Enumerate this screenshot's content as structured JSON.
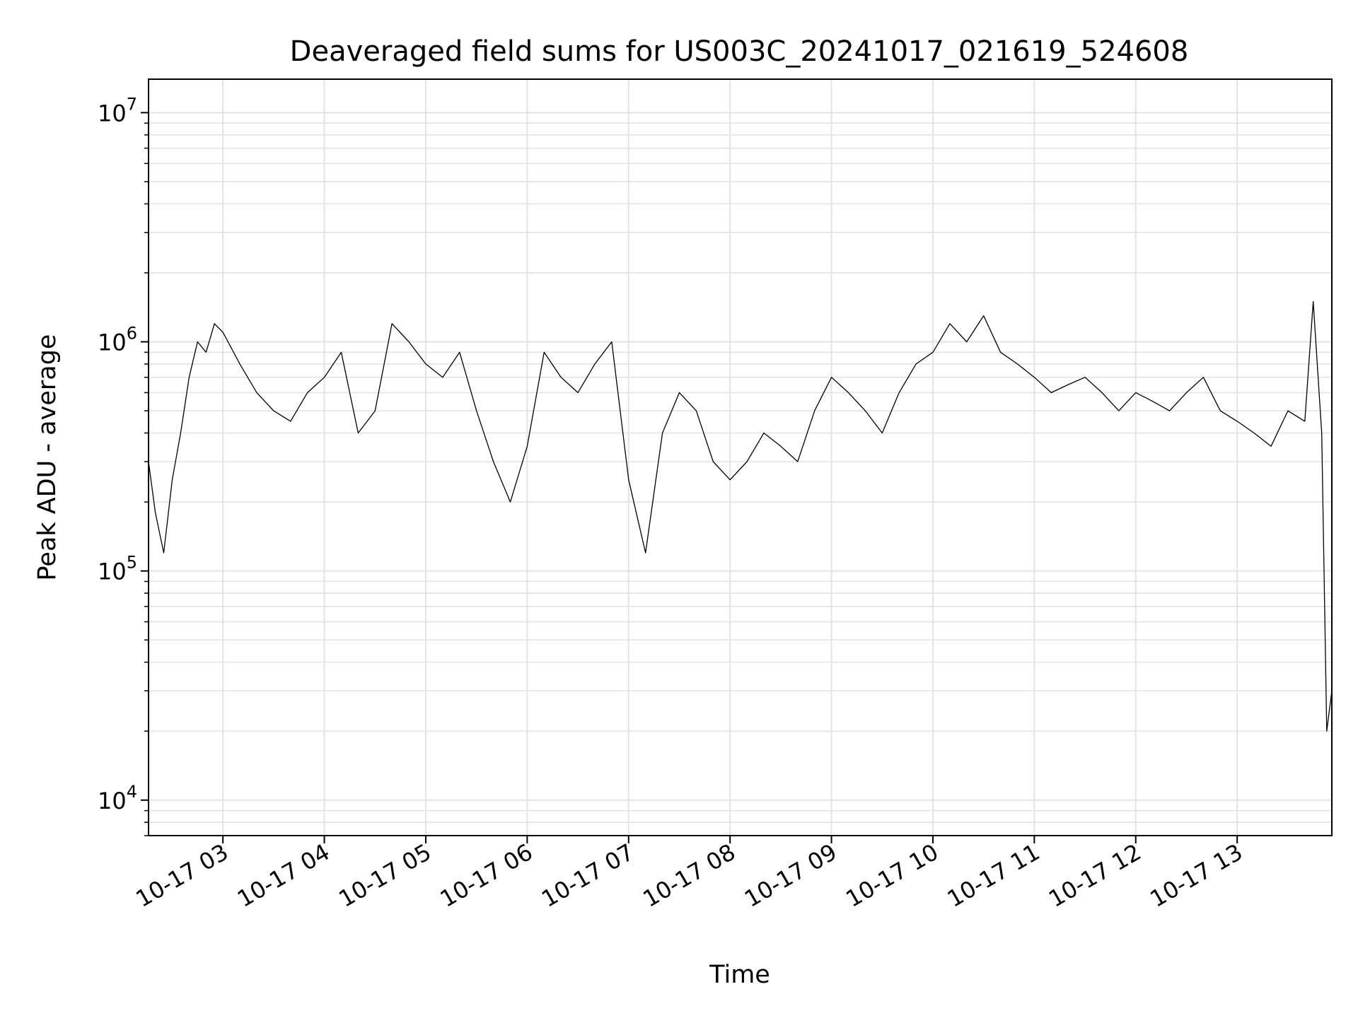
{
  "chart_data": {
    "type": "line",
    "title": "Deaveraged field sums for US003C_20241017_021619_524608",
    "xlabel": "Time",
    "ylabel": "Peak ADU - average",
    "y_scale": "log",
    "ylim": [
      7000,
      14000000
    ],
    "xlim": [
      "2024-10-17 02:16",
      "2024-10-17 13:56"
    ],
    "grid": true,
    "line_color": "#000000",
    "grid_color": "#e3e3e3",
    "x_ticks": [
      {
        "value": "2024-10-17 03:00",
        "label": "10-17 03"
      },
      {
        "value": "2024-10-17 04:00",
        "label": "10-17 04"
      },
      {
        "value": "2024-10-17 05:00",
        "label": "10-17 05"
      },
      {
        "value": "2024-10-17 06:00",
        "label": "10-17 06"
      },
      {
        "value": "2024-10-17 07:00",
        "label": "10-17 07"
      },
      {
        "value": "2024-10-17 08:00",
        "label": "10-17 08"
      },
      {
        "value": "2024-10-17 09:00",
        "label": "10-17 09"
      },
      {
        "value": "2024-10-17 10:00",
        "label": "10-17 10"
      },
      {
        "value": "2024-10-17 11:00",
        "label": "10-17 11"
      },
      {
        "value": "2024-10-17 12:00",
        "label": "10-17 12"
      },
      {
        "value": "2024-10-17 13:00",
        "label": "10-17 13"
      }
    ],
    "y_ticks": [
      {
        "value": 10000,
        "base": "10",
        "exp": "4"
      },
      {
        "value": 100000,
        "base": "10",
        "exp": "5"
      },
      {
        "value": 1000000,
        "base": "10",
        "exp": "6"
      },
      {
        "value": 10000000,
        "base": "10",
        "exp": "7"
      }
    ],
    "series": [
      {
        "x": [
          "2024-10-17 02:16",
          "2024-10-17 02:20",
          "2024-10-17 02:25",
          "2024-10-17 02:30",
          "2024-10-17 02:35",
          "2024-10-17 02:40",
          "2024-10-17 02:45",
          "2024-10-17 02:50",
          "2024-10-17 02:55",
          "2024-10-17 03:00",
          "2024-10-17 03:10",
          "2024-10-17 03:20",
          "2024-10-17 03:30",
          "2024-10-17 03:40",
          "2024-10-17 03:50",
          "2024-10-17 04:00",
          "2024-10-17 04:10",
          "2024-10-17 04:20",
          "2024-10-17 04:30",
          "2024-10-17 04:40",
          "2024-10-17 04:50",
          "2024-10-17 05:00",
          "2024-10-17 05:10",
          "2024-10-17 05:20",
          "2024-10-17 05:30",
          "2024-10-17 05:40",
          "2024-10-17 05:50",
          "2024-10-17 06:00",
          "2024-10-17 06:10",
          "2024-10-17 06:20",
          "2024-10-17 06:30",
          "2024-10-17 06:40",
          "2024-10-17 06:50",
          "2024-10-17 07:00",
          "2024-10-17 07:10",
          "2024-10-17 07:20",
          "2024-10-17 07:30",
          "2024-10-17 07:40",
          "2024-10-17 07:50",
          "2024-10-17 08:00",
          "2024-10-17 08:10",
          "2024-10-17 08:20",
          "2024-10-17 08:30",
          "2024-10-17 08:40",
          "2024-10-17 08:50",
          "2024-10-17 09:00",
          "2024-10-17 09:10",
          "2024-10-17 09:20",
          "2024-10-17 09:30",
          "2024-10-17 09:40",
          "2024-10-17 09:50",
          "2024-10-17 10:00",
          "2024-10-17 10:10",
          "2024-10-17 10:20",
          "2024-10-17 10:30",
          "2024-10-17 10:40",
          "2024-10-17 10:50",
          "2024-10-17 11:00",
          "2024-10-17 11:10",
          "2024-10-17 11:20",
          "2024-10-17 11:30",
          "2024-10-17 11:40",
          "2024-10-17 11:50",
          "2024-10-17 12:00",
          "2024-10-17 12:10",
          "2024-10-17 12:20",
          "2024-10-17 12:30",
          "2024-10-17 12:40",
          "2024-10-17 12:50",
          "2024-10-17 13:00",
          "2024-10-17 13:10",
          "2024-10-17 13:20",
          "2024-10-17 13:30",
          "2024-10-17 13:40",
          "2024-10-17 13:45",
          "2024-10-17 13:50",
          "2024-10-17 13:53",
          "2024-10-17 13:56"
        ],
        "y": [
          300000,
          180000,
          120000,
          250000,
          400000,
          700000,
          1000000,
          900000,
          1200000,
          1100000,
          800000,
          600000,
          500000,
          450000,
          600000,
          700000,
          900000,
          400000,
          500000,
          1200000,
          1000000,
          800000,
          700000,
          900000,
          500000,
          300000,
          200000,
          350000,
          900000,
          700000,
          600000,
          800000,
          1000000,
          250000,
          120000,
          400000,
          600000,
          500000,
          300000,
          250000,
          300000,
          400000,
          350000,
          300000,
          500000,
          700000,
          600000,
          500000,
          400000,
          600000,
          800000,
          900000,
          1200000,
          1000000,
          1300000,
          900000,
          800000,
          700000,
          600000,
          650000,
          700000,
          600000,
          500000,
          600000,
          550000,
          500000,
          600000,
          700000,
          500000,
          450000,
          400000,
          350000,
          500000,
          450000,
          1500000,
          400000,
          20000,
          30000
        ]
      }
    ]
  }
}
